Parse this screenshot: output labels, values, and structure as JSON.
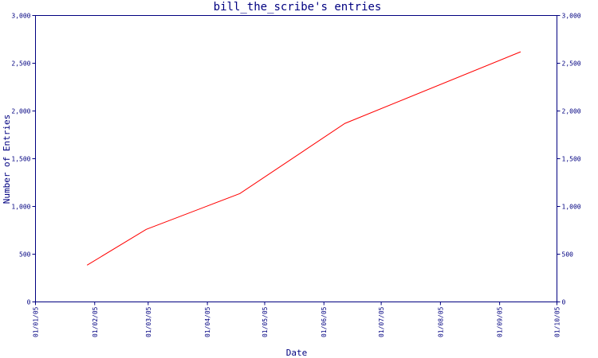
{
  "chart_data": {
    "type": "line",
    "title": "bill_the_scribe's entries",
    "xlabel": "Date",
    "ylabel": "Number of Entries",
    "x_tick_labels": [
      "01/01/05",
      "01/02/05",
      "01/03/05",
      "01/04/05",
      "01/05/05",
      "01/06/05",
      "01/07/05",
      "01/08/05",
      "01/09/05",
      "01/10/05"
    ],
    "y_tick_labels": [
      "0",
      "500",
      "1,000",
      "1,500",
      "2,000",
      "2,500",
      "3,000"
    ],
    "ylim": [
      0,
      3000
    ],
    "xlim": [
      "2005-01-01",
      "2005-10-01"
    ],
    "grid": false,
    "series": [
      {
        "color": "#ff0000",
        "points": [
          {
            "x": "2005-01-28",
            "y": 385
          },
          {
            "x": "2005-02-28",
            "y": 760
          },
          {
            "x": "2005-04-18",
            "y": 1135
          },
          {
            "x": "2005-06-12",
            "y": 1870
          },
          {
            "x": "2005-09-12",
            "y": 2620
          }
        ]
      }
    ],
    "colors": {
      "axis": "#000080",
      "text": "#000080",
      "line": "#ff0000"
    }
  }
}
